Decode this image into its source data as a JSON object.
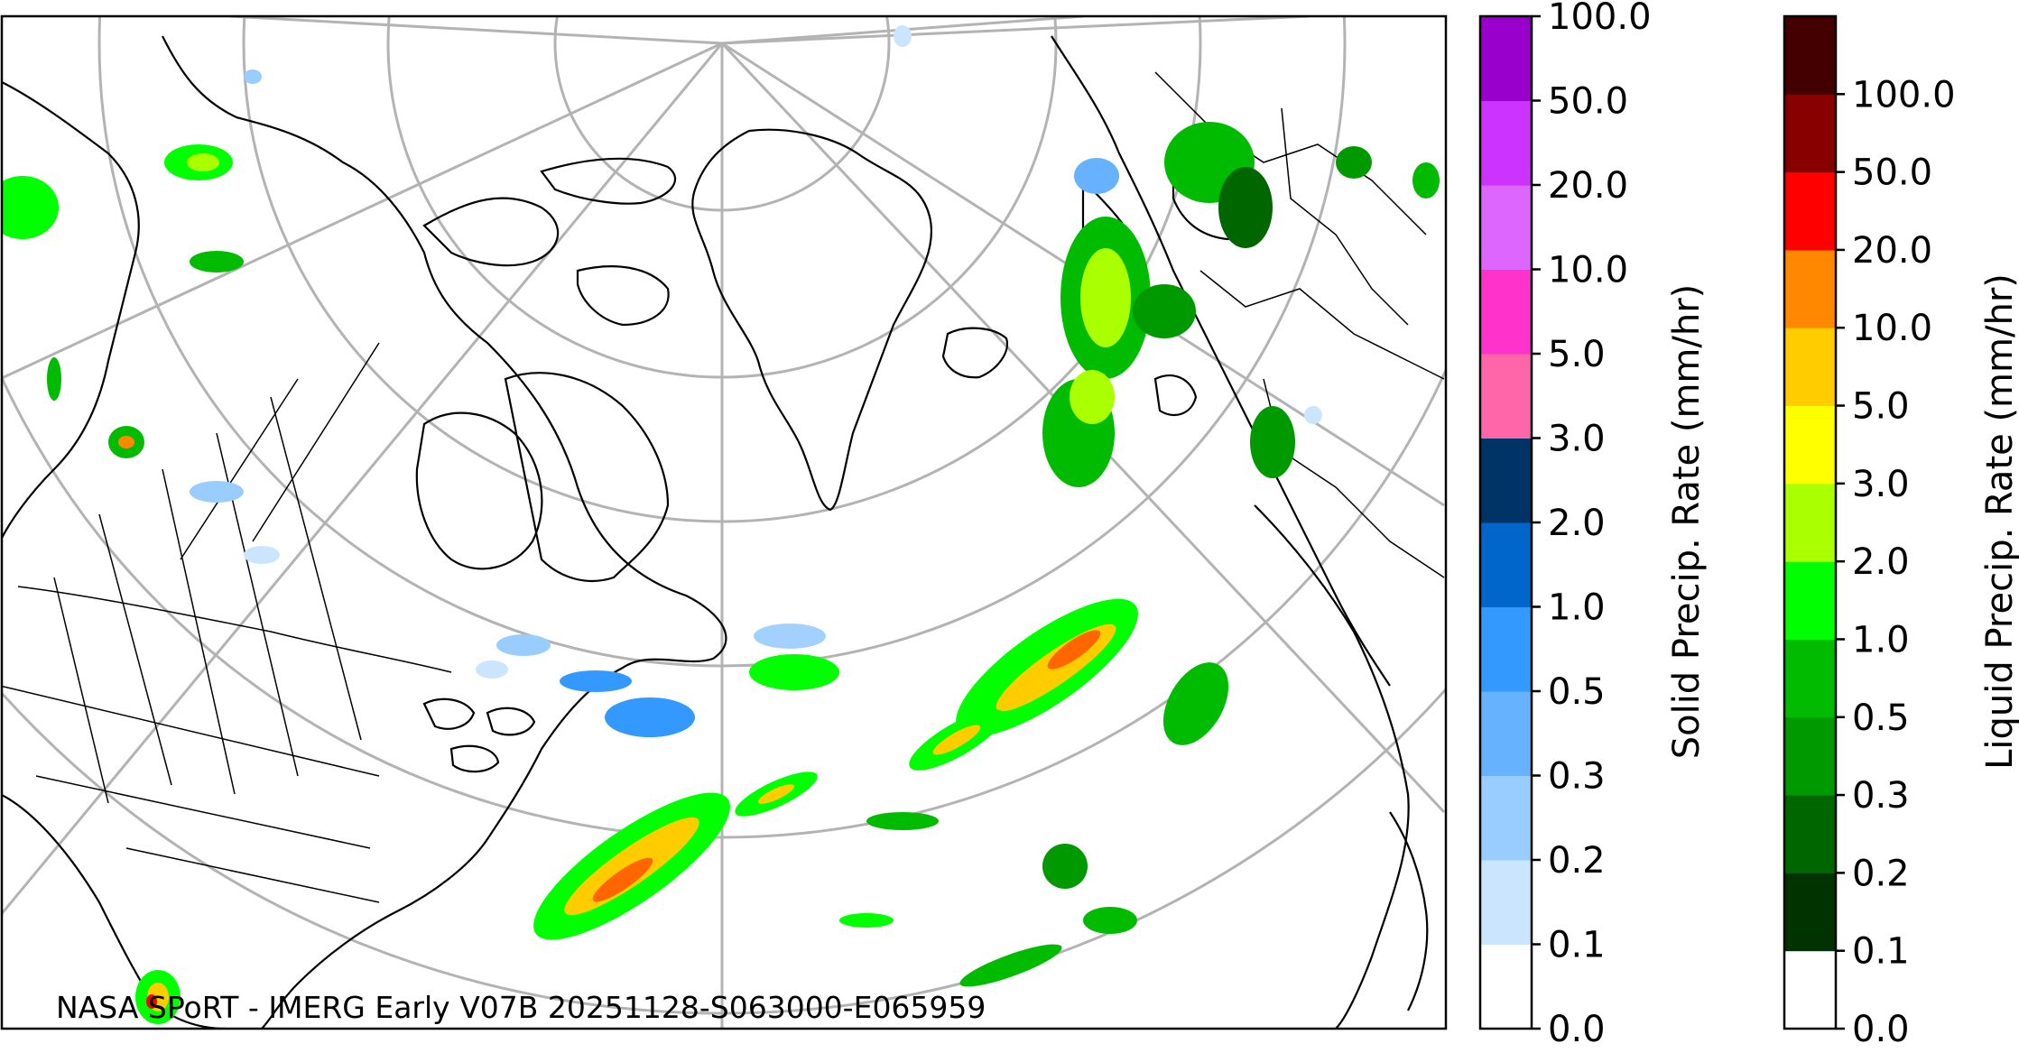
{
  "credit": "NASA SPoRT - IMERG Early V07B 20251128-S063000-E065959",
  "solid_colorbar": {
    "title": "Solid Precip. Rate (mm/hr)",
    "ticks": [
      "0.0",
      "0.1",
      "0.2",
      "0.3",
      "0.5",
      "1.0",
      "2.0",
      "3.0",
      "5.0",
      "10.0",
      "20.0",
      "50.0",
      "100.0"
    ],
    "colors": [
      "#ffffff",
      "#cce5ff",
      "#99ccff",
      "#66b2ff",
      "#3399ff",
      "#0066cc",
      "#003366",
      "#ff66aa",
      "#ff33cc",
      "#dd66ff",
      "#cc33ff",
      "#9900cc"
    ]
  },
  "liquid_colorbar": {
    "title": "Liquid Precip. Rate (mm/hr)",
    "ticks": [
      "0.0",
      "0.1",
      "0.2",
      "0.3",
      "0.5",
      "1.0",
      "2.0",
      "3.0",
      "5.0",
      "10.0",
      "20.0",
      "50.0",
      "100.0"
    ],
    "colors": [
      "#ffffff",
      "#003300",
      "#006600",
      "#009900",
      "#00bb00",
      "#00ff00",
      "#aaff00",
      "#ffff00",
      "#ffcc00",
      "#ff8800",
      "#ff0000",
      "#880000",
      "#440000"
    ]
  },
  "map": {
    "projection": "polar stereographic (north)",
    "graticule_color": "#b3b3b3",
    "coastline_color": "#000000"
  }
}
